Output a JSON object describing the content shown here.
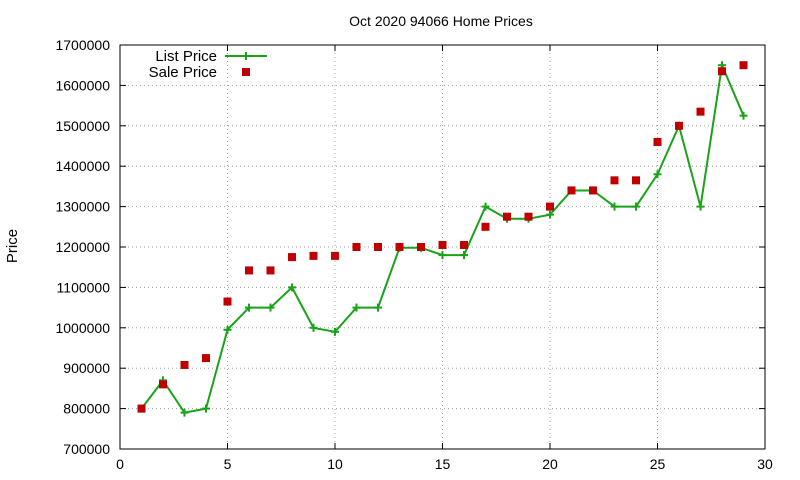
{
  "chart_data": {
    "type": "line",
    "title": "Oct 2020 94066 Home Prices",
    "xlabel": "",
    "ylabel": "Price",
    "xlim": [
      0,
      30
    ],
    "ylim": [
      700000,
      1700000
    ],
    "x_ticks": [
      0,
      5,
      10,
      15,
      20,
      25,
      30
    ],
    "y_ticks": [
      700000,
      800000,
      900000,
      1000000,
      1100000,
      1200000,
      1300000,
      1400000,
      1500000,
      1600000,
      1700000
    ],
    "grid": true,
    "legend_position": "top-left",
    "series": [
      {
        "name": "List Price",
        "style": "line-with-plus-markers",
        "color": "#1aa31a",
        "x": [
          1,
          2,
          3,
          4,
          5,
          6,
          7,
          8,
          9,
          10,
          11,
          12,
          13,
          14,
          15,
          16,
          17,
          18,
          19,
          20,
          21,
          22,
          23,
          24,
          25,
          26,
          27,
          28,
          29
        ],
        "values": [
          800000,
          870000,
          790000,
          800000,
          995000,
          1050000,
          1050000,
          1100000,
          1000000,
          990000,
          1050000,
          1050000,
          1198000,
          1198000,
          1180000,
          1180000,
          1300000,
          1270000,
          1270000,
          1280000,
          1340000,
          1340000,
          1300000,
          1300000,
          1380000,
          1500000,
          1300000,
          1650000,
          1525000
        ]
      },
      {
        "name": "Sale Price",
        "style": "square-markers",
        "color": "#c00000",
        "x": [
          1,
          2,
          3,
          4,
          5,
          6,
          7,
          8,
          9,
          10,
          11,
          12,
          13,
          14,
          15,
          16,
          17,
          18,
          19,
          20,
          21,
          22,
          23,
          24,
          25,
          26,
          27,
          28,
          29
        ],
        "values": [
          800000,
          860000,
          908000,
          925000,
          1065000,
          1142000,
          1142000,
          1175000,
          1178000,
          1178000,
          1200000,
          1200000,
          1200000,
          1200000,
          1205000,
          1205000,
          1250000,
          1275000,
          1275000,
          1300000,
          1340000,
          1340000,
          1365000,
          1365000,
          1460000,
          1500000,
          1535000,
          1635000,
          1650000
        ]
      }
    ]
  }
}
